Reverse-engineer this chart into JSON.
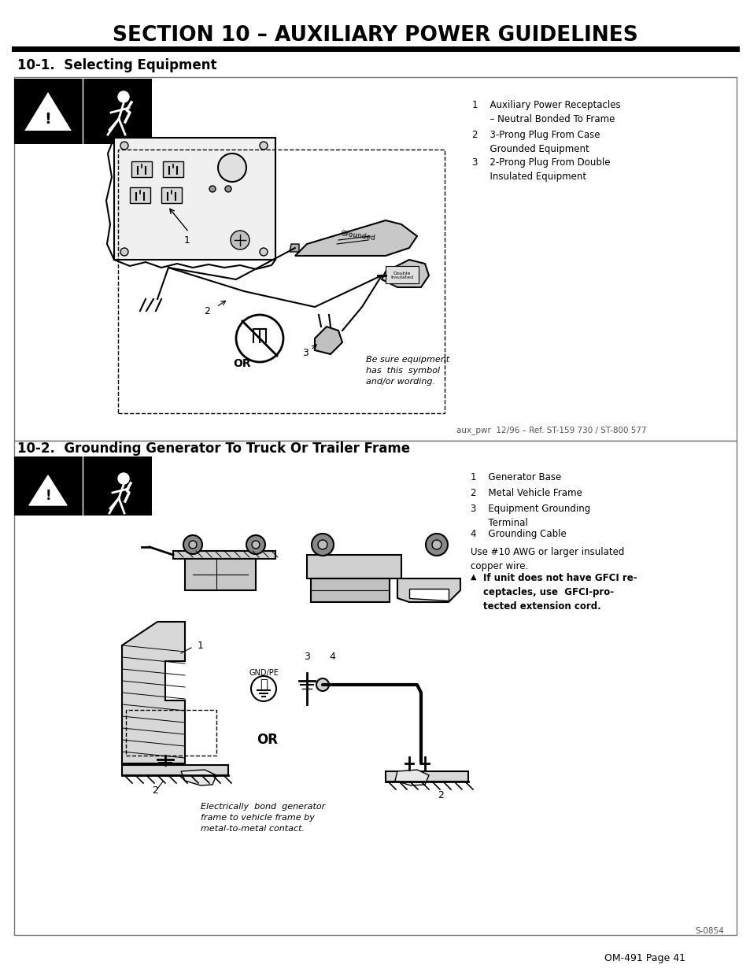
{
  "title": "SECTION 10 – AUXILIARY POWER GUIDELINES",
  "section1_heading": "10-1.  Selecting Equipment",
  "section2_heading": "10-2.  Grounding Generator To Truck Or Trailer Frame",
  "s1_item1": "1    Auxiliary Power Receptacles\n      – Neutral Bonded To Frame",
  "s1_item2": "2    3-Prong Plug From Case\n      Grounded Equipment",
  "s1_item3": "3    2-Prong Plug From Double\n      Insulated Equipment",
  "s2_item1": "1    Generator Base",
  "s2_item2": "2    Metal Vehicle Frame",
  "s2_item3": "3    Equipment Grounding\n      Terminal",
  "s2_item4": "4    Grounding Cable",
  "s2_note": "Use #10 AWG or larger insulated\ncopper wire.",
  "s2_warning": "If unit does not have GFCI re-\nceptacles, use  GFCI-pro-\ntected extension cord.",
  "s1_caption": "aux_pwr  12/96 – Ref. ST-159 730 / ST-800 577",
  "s2_caption": "S-0854",
  "italic_text": "Be sure equipment\nhas  this  symbol\nand/or wording.",
  "footer": "OM-491 Page 41",
  "bg_color": "#ffffff",
  "black": "#000000",
  "gray_light": "#cccccc",
  "gray_med": "#aaaaaa",
  "gray_dark": "#888888",
  "border_color": "#777777"
}
